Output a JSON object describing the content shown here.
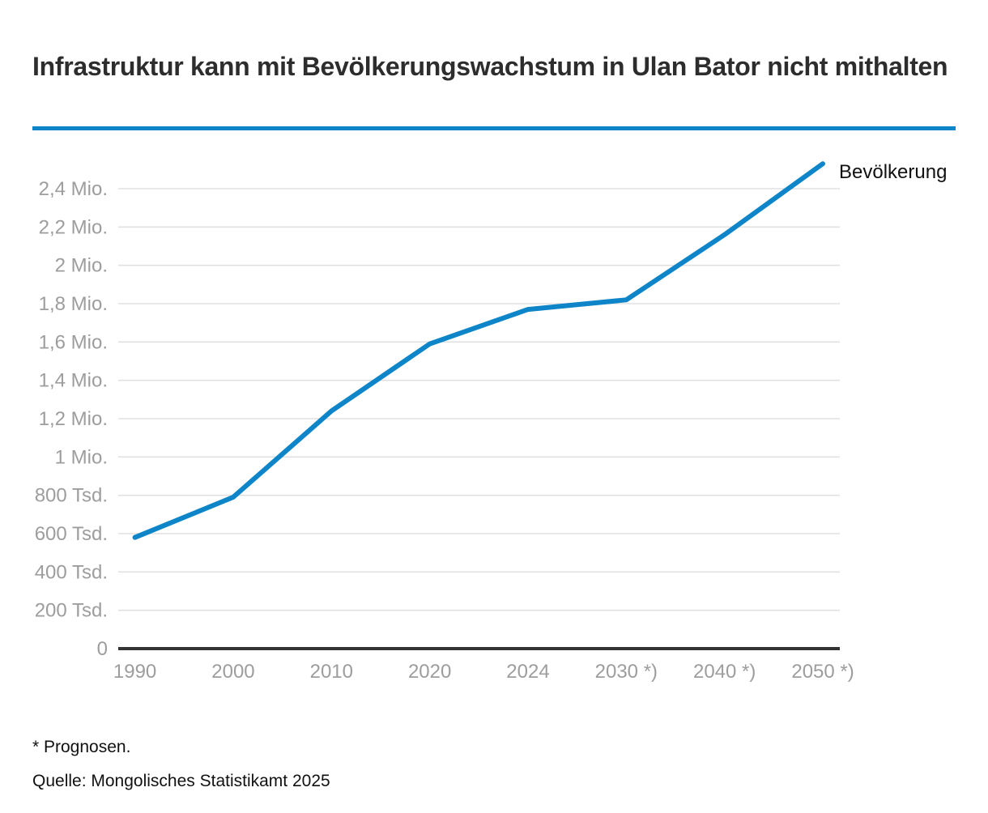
{
  "header": {
    "title": "Infrastruktur kann mit Bevölkerungswachstum in Ulan Bator nicht mithalten"
  },
  "chart_data": {
    "type": "line",
    "title": "Infrastruktur kann mit Bevölkerungswachstum in Ulan Bator nicht mithalten",
    "xlabel": "",
    "ylabel": "",
    "categories": [
      "1990",
      "2000",
      "2010",
      "2020",
      "2024",
      "2030 *)",
      "2040 *)",
      "2050 *)"
    ],
    "series": [
      {
        "name": "Bevölkerung",
        "values": [
          580000,
          790000,
          1240000,
          1590000,
          1770000,
          1820000,
          2160000,
          2530000
        ]
      }
    ],
    "y_tick_values": [
      0,
      200000,
      400000,
      600000,
      800000,
      1000000,
      1200000,
      1400000,
      1600000,
      1800000,
      2000000,
      2200000,
      2400000
    ],
    "y_tick_labels": [
      "0",
      "200 Tsd.",
      "400 Tsd.",
      "600 Tsd.",
      "800 Tsd.",
      "1 Mio.",
      "1,2 Mio.",
      "1,4 Mio.",
      "1,6 Mio.",
      "1,8 Mio.",
      "2 Mio.",
      "2,2 Mio.",
      "2,4 Mio."
    ],
    "ylim": [
      0,
      2600000
    ],
    "grid": "horizontal",
    "legend_position": "end-of-line",
    "line_color": "#0d85c8"
  },
  "footer": {
    "footnote": "* Prognosen.",
    "source": "Quelle: Mongolisches Statistikamt 2025"
  },
  "colors": {
    "accent": "#0d85c8",
    "title_text": "#2d2d2d",
    "axis_label": "#9d9d9d",
    "gridline": "#e0e0e0",
    "baseline": "#333333",
    "legend_text": "#111111"
  }
}
